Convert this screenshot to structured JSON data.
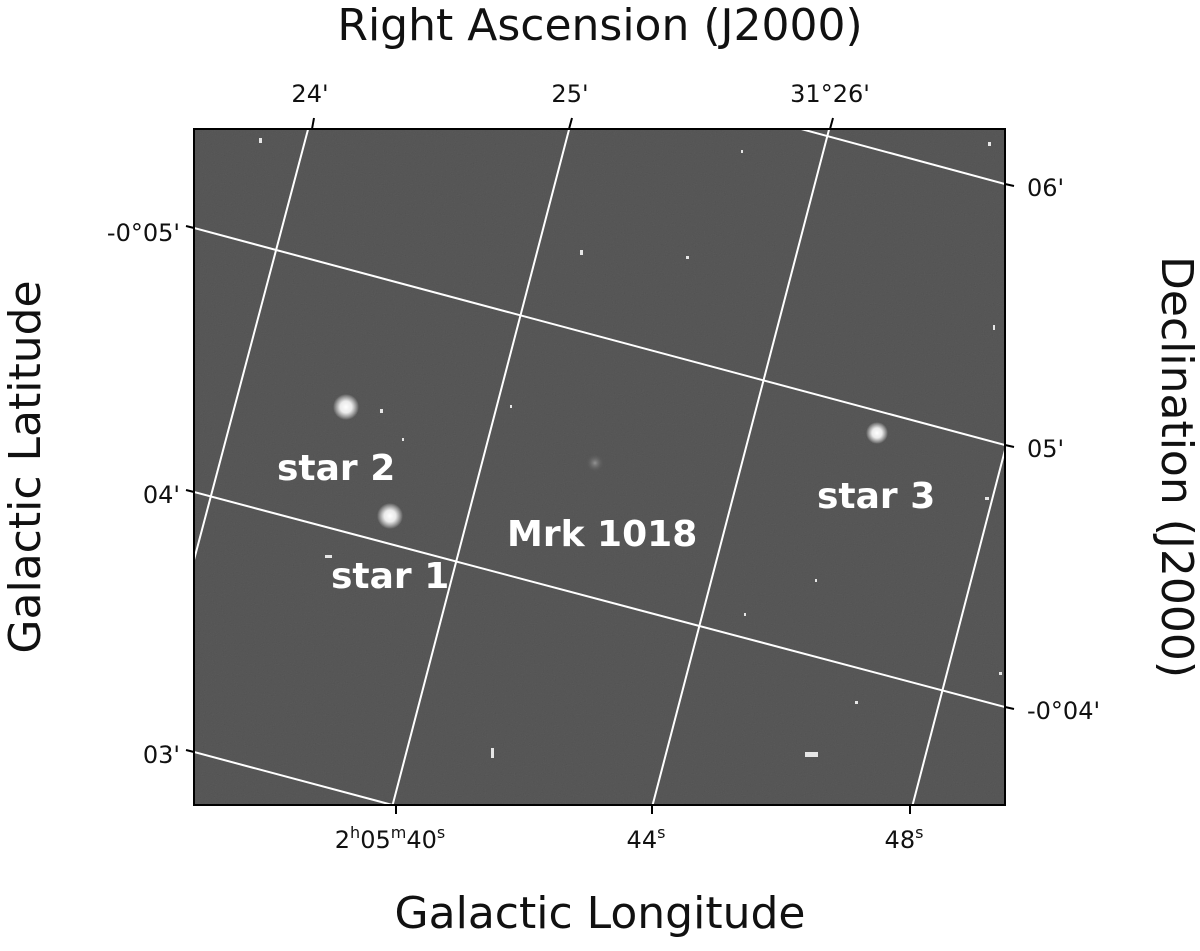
{
  "axes": {
    "top_title": "Right Ascension (J2000)",
    "right_title": "Declination (J2000)",
    "left_title": "Galactic Latitude",
    "bottom_title": "Galactic Longitude"
  },
  "ticks": {
    "top": [
      "24'",
      "25'",
      "31°26'"
    ],
    "left": [
      "-0°05'",
      "04'",
      "03'"
    ],
    "right": [
      "06'",
      "05'",
      "-0°04'"
    ],
    "bottom_first": {
      "h": "2",
      "m": "05",
      "s": "40"
    },
    "bottom": [
      "44",
      "48"
    ],
    "superscript_h": "h",
    "superscript_m": "m",
    "superscript_s": "s"
  },
  "labels": {
    "star2": "star 2",
    "star1": "star 1",
    "target": "Mrk 1018",
    "star3": "star 3"
  },
  "colors": {
    "sky": "#5a5a5a",
    "grid": "#ffffff",
    "frame": "#000000"
  }
}
